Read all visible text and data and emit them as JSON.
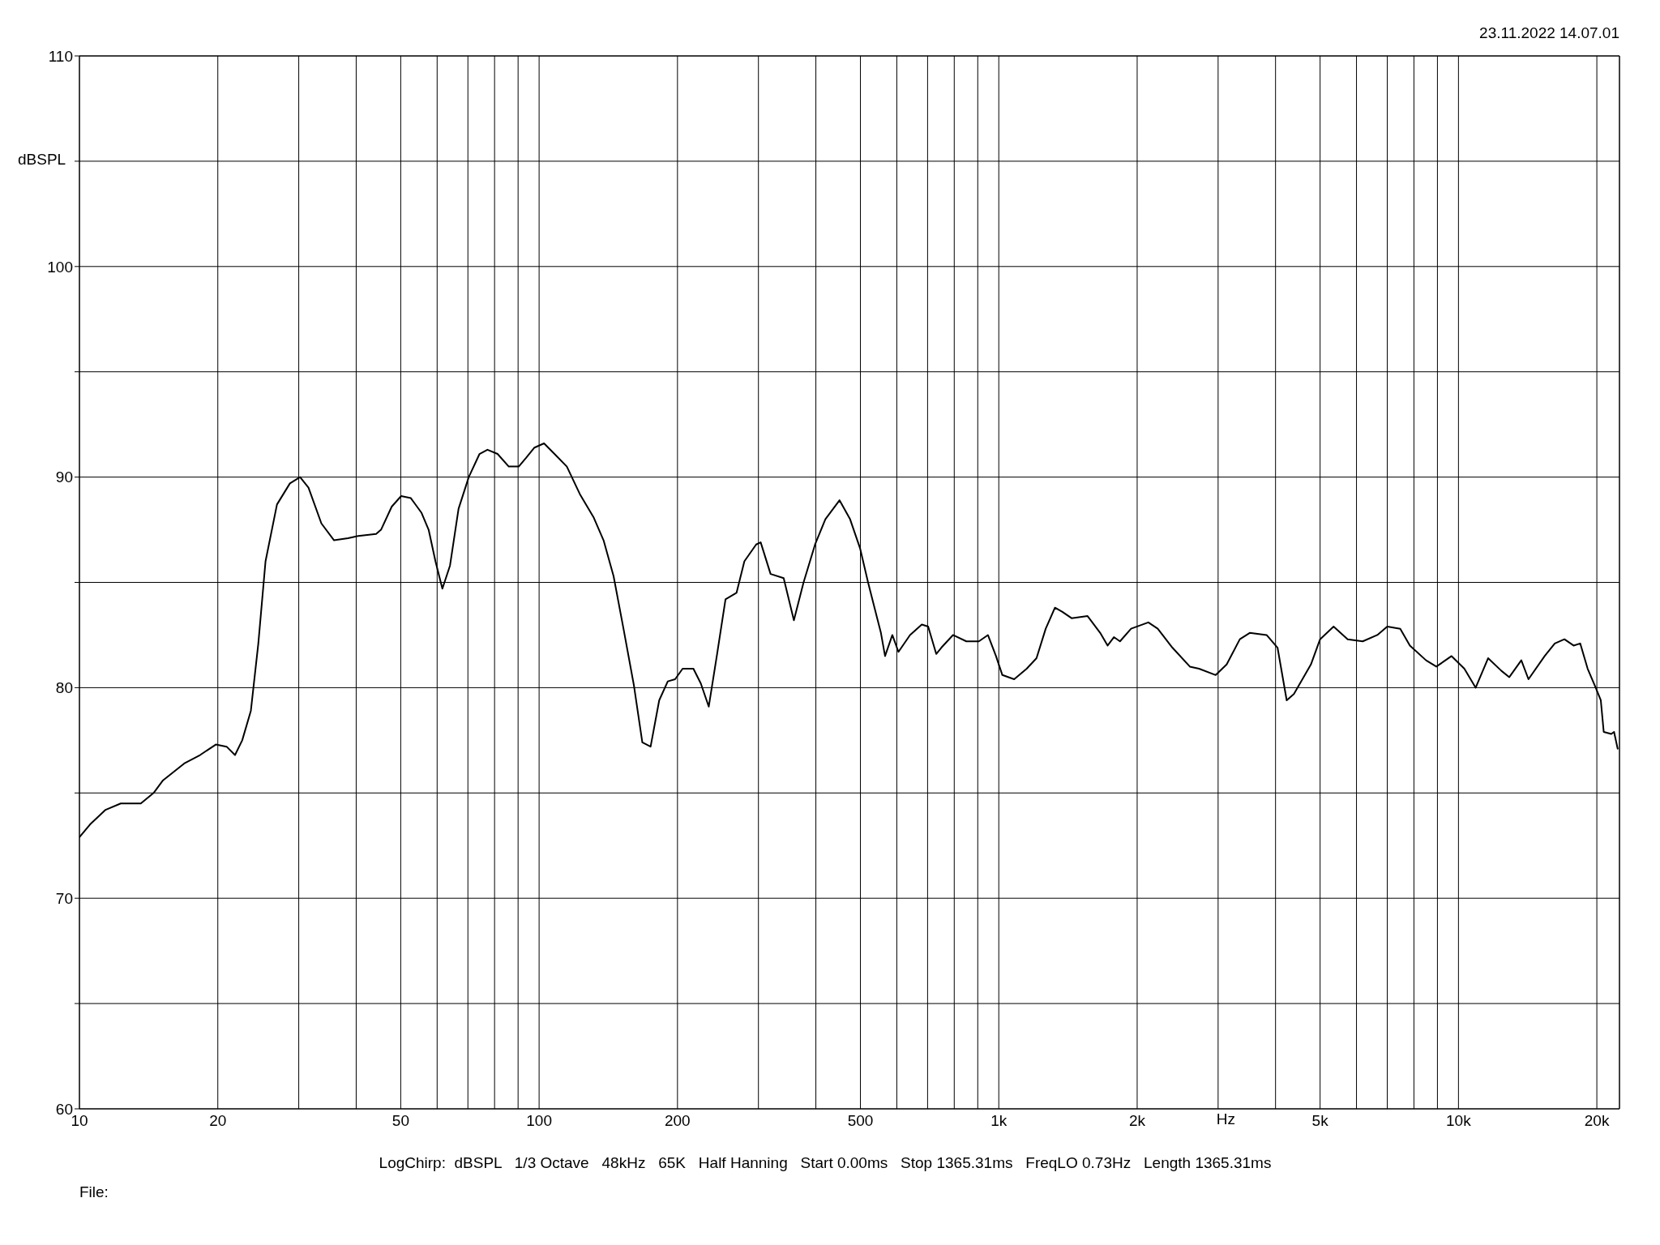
{
  "chart_data": {
    "type": "line",
    "ylabel": "dBSPL",
    "xlabel": "Hz",
    "annotations": [
      "23.11.2022 14.07.01",
      "LogChirp:  dBSPL   1/3 Octave   48kHz   65K   Half Hanning   Start 0.00ms   Stop 1365.31ms   FreqLO 0.73Hz   Length 1365.31ms",
      "File:"
    ],
    "log": "x",
    "grid": true,
    "marker": "none",
    "line_style": "solid",
    "xlim": [
      10,
      22400
    ],
    "ylim": [
      60,
      110
    ],
    "xticks": [
      10,
      20,
      {
        "value": 30,
        "label": null
      },
      {
        "value": 40,
        "label": null
      },
      50,
      {
        "value": 60,
        "label": null
      },
      {
        "value": 70,
        "label": null
      },
      {
        "value": 80,
        "label": null
      },
      {
        "value": 90,
        "label": null
      },
      100,
      200,
      {
        "value": 300,
        "label": null
      },
      {
        "value": 400,
        "label": null
      },
      500,
      {
        "value": 600,
        "label": null
      },
      {
        "value": 700,
        "label": null
      },
      {
        "value": 800,
        "label": null
      },
      {
        "value": 900,
        "label": null
      },
      {
        "value": 1000,
        "label": "1k"
      },
      {
        "value": 2000,
        "label": "2k"
      },
      {
        "value": 3000,
        "label": null
      },
      {
        "value": 4000,
        "label": null
      },
      {
        "value": 5000,
        "label": "5k"
      },
      {
        "value": 6000,
        "label": null
      },
      {
        "value": 7000,
        "label": null
      },
      {
        "value": 8000,
        "label": null
      },
      {
        "value": 9000,
        "label": null
      },
      {
        "value": 10000,
        "label": "10k"
      },
      {
        "value": 20000,
        "label": "20k"
      }
    ],
    "yticks": [
      60,
      {
        "value": 65,
        "label": null
      },
      70,
      {
        "value": 75,
        "label": null
      },
      80,
      {
        "value": 85,
        "label": null
      },
      90,
      {
        "value": 95,
        "label": null
      },
      100,
      {
        "value": 105,
        "label": null
      },
      110
    ],
    "series": [
      {
        "color": "#000000",
        "x": [
          10,
          10.54,
          11.4,
          12.3,
          13.6,
          14.5,
          15.2,
          16.9,
          18.3,
          19.8,
          20.9,
          21.8,
          22.6,
          23.6,
          24.5,
          25.4,
          26.9,
          28.7,
          30.2,
          31.5,
          33.6,
          35.8,
          38.4,
          40.4,
          44.2,
          45.3,
          47.8,
          50.1,
          52.6,
          55.5,
          57.5,
          59.5,
          61.6,
          64,
          66.8,
          70.3,
          74.2,
          77.2,
          81.2,
          85.9,
          90.3,
          93.6,
          97.7,
          102.5,
          108,
          114.9,
          122.6,
          131.3,
          138.1,
          145.2,
          152.6,
          160.8,
          167.7,
          174.8,
          182.5,
          190.5,
          197.6,
          205.2,
          216.6,
          224.8,
          233.9,
          243.9,
          254.4,
          268.8,
          279.6,
          296.6,
          303.4,
          318.8,
          340.4,
          358.3,
          376.1,
          398.4,
          419.5,
          450.4,
          474.8,
          499.4,
          519.5,
          554.1,
          565.7,
          586.7,
          605,
          641,
          680,
          702,
          731,
          750,
          795,
          850,
          905,
          947,
          986,
          1018,
          1080,
          1150,
          1208,
          1265,
          1325,
          1375,
          1440,
          1560,
          1662,
          1725,
          1780,
          1835,
          1940,
          2115,
          2217,
          2386,
          2604,
          2727,
          2964,
          3131,
          3345,
          3515,
          3825,
          4040,
          4230,
          4385,
          4775,
          5000,
          5350,
          5740,
          6190,
          6660,
          7000,
          7470,
          7840,
          8500,
          8950,
          9660,
          10300,
          10900,
          11600,
          12400,
          12900,
          13700,
          14200,
          15400,
          16200,
          17000,
          17800,
          18400,
          19100,
          19800,
          20400,
          20700,
          21500,
          21800,
          22200
        ],
        "values": [
          72.9,
          73.5,
          74.2,
          74.5,
          74.5,
          75.0,
          75.6,
          76.4,
          76.8,
          77.3,
          77.2,
          76.8,
          77.5,
          78.9,
          82.1,
          86.0,
          88.7,
          89.7,
          90.0,
          89.5,
          87.8,
          87.0,
          87.1,
          87.2,
          87.3,
          87.5,
          88.6,
          89.1,
          89.0,
          88.3,
          87.5,
          86.0,
          84.7,
          85.8,
          88.5,
          90.0,
          91.1,
          91.3,
          91.1,
          90.5,
          90.5,
          90.9,
          91.4,
          91.6,
          91.1,
          90.5,
          89.2,
          88.1,
          87.0,
          85.3,
          82.8,
          80.1,
          77.4,
          77.2,
          79.4,
          80.3,
          80.4,
          80.9,
          80.9,
          80.2,
          79.1,
          81.6,
          84.2,
          84.5,
          86.0,
          86.8,
          86.9,
          85.4,
          85.2,
          83.2,
          85.0,
          86.8,
          88.0,
          88.9,
          88.0,
          86.6,
          85.0,
          82.6,
          81.5,
          82.5,
          81.7,
          82.5,
          83.0,
          82.9,
          81.6,
          81.9,
          82.5,
          82.2,
          82.2,
          82.5,
          81.5,
          80.6,
          80.4,
          80.9,
          81.4,
          82.8,
          83.8,
          83.6,
          83.3,
          83.4,
          82.6,
          82.0,
          82.4,
          82.2,
          82.8,
          83.1,
          82.8,
          81.9,
          81.0,
          80.9,
          80.6,
          81.1,
          82.3,
          82.6,
          82.5,
          81.9,
          79.4,
          79.7,
          81.1,
          82.3,
          82.9,
          82.3,
          82.2,
          82.5,
          82.9,
          82.8,
          82.0,
          81.3,
          81.0,
          81.5,
          80.9,
          80.0,
          81.4,
          80.8,
          80.5,
          81.3,
          80.4,
          81.5,
          82.1,
          82.3,
          82.0,
          82.1,
          80.9,
          80.1,
          79.4,
          77.9,
          77.8,
          77.9,
          77.1
        ]
      }
    ]
  }
}
